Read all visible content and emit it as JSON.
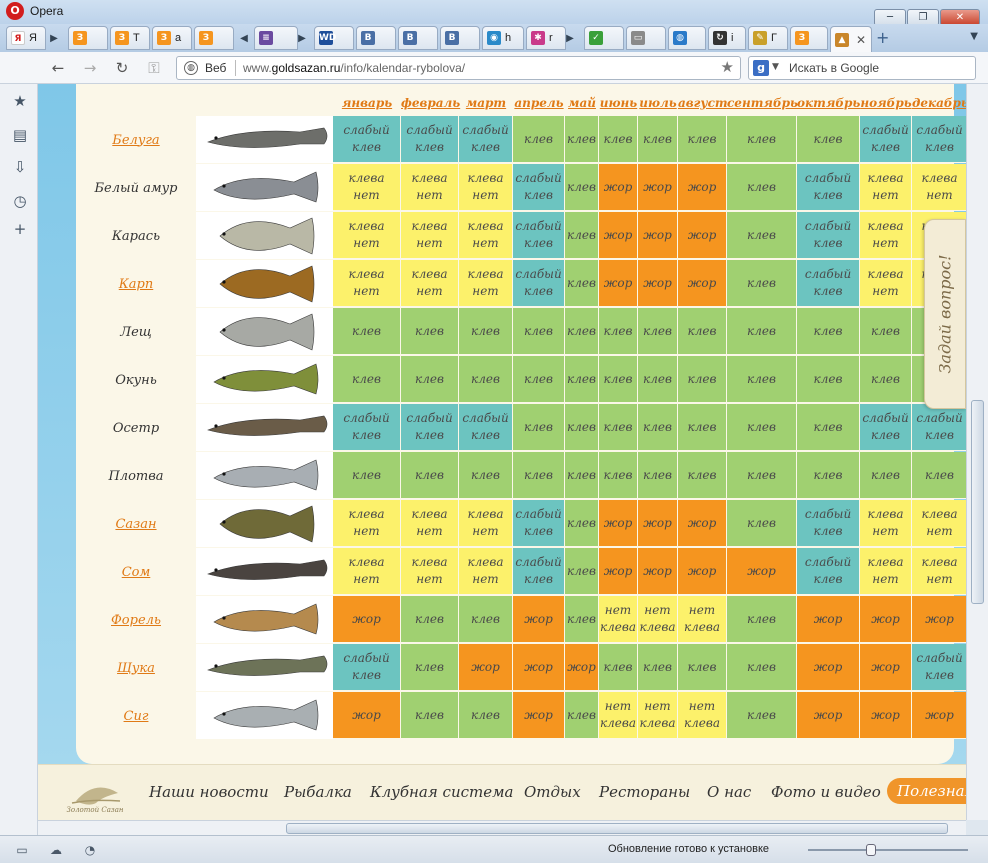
{
  "window": {
    "title": "Opera"
  },
  "tabs": [
    {
      "icon": "yandex-icon",
      "icon_text": "Я",
      "color": "#ffffff",
      "label": "Я"
    },
    {
      "icon": "z-logo-icon",
      "icon_text": "З",
      "color": "#f5951f",
      "label": ""
    },
    {
      "icon": "z-logo-icon",
      "icon_text": "З",
      "color": "#f5951f",
      "label": "Т"
    },
    {
      "icon": "z-logo-icon",
      "icon_text": "З",
      "color": "#f5951f",
      "label": "а"
    },
    {
      "icon": "z-logo-icon",
      "icon_text": "З",
      "color": "#f5951f",
      "label": ""
    },
    {
      "icon": "books-icon",
      "icon_text": "≡",
      "color": "#6a4aa0",
      "label": ""
    },
    {
      "icon": "wd-icon",
      "icon_text": "WD",
      "color": "#1e4e9a",
      "label": ""
    },
    {
      "icon": "vk-icon",
      "icon_text": "B",
      "color": "#4a6fa5",
      "label": ""
    },
    {
      "icon": "vk-icon",
      "icon_text": "B",
      "color": "#4a6fa5",
      "label": ""
    },
    {
      "icon": "vk-icon",
      "icon_text": "B",
      "color": "#4a6fa5",
      "label": ""
    },
    {
      "icon": "radio-icon",
      "icon_text": "◉",
      "color": "#2a8ac9",
      "label": "h"
    },
    {
      "icon": "color-icon",
      "icon_text": "✱",
      "color": "#c93a8a",
      "label": "r"
    },
    {
      "icon": "check-icon",
      "icon_text": "✓",
      "color": "#3aa03a",
      "label": ""
    },
    {
      "icon": "page-icon",
      "icon_text": "▭",
      "color": "#8a8a8a",
      "label": ""
    },
    {
      "icon": "globe-icon",
      "icon_text": "◍",
      "color": "#2a7ac9",
      "label": ""
    },
    {
      "icon": "arrow-icon",
      "icon_text": "↻",
      "color": "#333333",
      "label": "i"
    },
    {
      "icon": "key-icon",
      "icon_text": "✎",
      "color": "#c9a02a",
      "label": "Г"
    },
    {
      "icon": "z-logo-icon",
      "icon_text": "З",
      "color": "#f5951f",
      "label": ""
    },
    {
      "icon": "fish-site-icon",
      "icon_text": "▲",
      "color": "#c9862a",
      "label": ""
    }
  ],
  "addressbar": {
    "web_label": "Веб",
    "url_prefix": "www.",
    "url_domain": "goldsazan.ru",
    "url_path": "/info/kalendar-rybolova/",
    "search_placeholder": "Искать в Google"
  },
  "calendar": {
    "months": [
      "январь",
      "февраль",
      "март",
      "апрель",
      "май",
      "июнь",
      "июль",
      "август",
      "сентябрь",
      "октябрь",
      "ноябрь",
      "декабрь"
    ],
    "fish": [
      {
        "name": "Белуга",
        "link": true,
        "image": "beluga-fish-image",
        "cells": [
          "b",
          "b",
          "b",
          "g",
          "g",
          "g",
          "g",
          "g",
          "g",
          "g",
          "b",
          "b"
        ]
      },
      {
        "name": "Белый амур",
        "link": false,
        "image": "grass-carp-fish-image",
        "cells": [
          "y",
          "y",
          "y",
          "b",
          "g",
          "o",
          "o",
          "o",
          "g",
          "b",
          "y",
          "y"
        ]
      },
      {
        "name": "Карась",
        "link": false,
        "image": "crucian-fish-image",
        "cells": [
          "y",
          "y",
          "y",
          "b",
          "g",
          "o",
          "o",
          "o",
          "g",
          "b",
          "y",
          "y"
        ]
      },
      {
        "name": "Карп",
        "link": true,
        "image": "carp-fish-image",
        "cells": [
          "y",
          "y",
          "y",
          "b",
          "g",
          "o",
          "o",
          "o",
          "g",
          "b",
          "y",
          "y"
        ]
      },
      {
        "name": "Лещ",
        "link": false,
        "image": "bream-fish-image",
        "cells": [
          "g",
          "g",
          "g",
          "g",
          "g",
          "g",
          "g",
          "g",
          "g",
          "g",
          "g",
          "g"
        ]
      },
      {
        "name": "Окунь",
        "link": false,
        "image": "perch-fish-image",
        "cells": [
          "g",
          "g",
          "g",
          "g",
          "g",
          "g",
          "g",
          "g",
          "g",
          "g",
          "g",
          "g"
        ]
      },
      {
        "name": "Осетр",
        "link": false,
        "image": "sturgeon-fish-image",
        "cells": [
          "b",
          "b",
          "b",
          "g",
          "g",
          "g",
          "g",
          "g",
          "g",
          "g",
          "b",
          "b"
        ]
      },
      {
        "name": "Плотва",
        "link": false,
        "image": "roach-fish-image",
        "cells": [
          "g",
          "g",
          "g",
          "g",
          "g",
          "g",
          "g",
          "g",
          "g",
          "g",
          "g",
          "g"
        ]
      },
      {
        "name": "Сазан",
        "link": true,
        "image": "sazan-fish-image",
        "cells": [
          "y",
          "y",
          "y",
          "b",
          "g",
          "o",
          "o",
          "o",
          "g",
          "b",
          "y",
          "y"
        ]
      },
      {
        "name": "Сом",
        "link": true,
        "image": "catfish-fish-image",
        "cells": [
          "y",
          "y",
          "y",
          "b",
          "g",
          "o",
          "o",
          "o",
          "o",
          "b",
          "y",
          "y"
        ]
      },
      {
        "name": "Форель",
        "link": true,
        "image": "trout-fish-image",
        "cells": [
          "o",
          "g",
          "g",
          "o",
          "g",
          "y",
          "y",
          "y",
          "g",
          "o",
          "o",
          "o"
        ]
      },
      {
        "name": "Щука",
        "link": true,
        "image": "pike-fish-image",
        "cells": [
          "b",
          "g",
          "o",
          "o",
          "o",
          "g",
          "g",
          "g",
          "g",
          "o",
          "o",
          "b"
        ]
      },
      {
        "name": "Сиг",
        "link": true,
        "image": "whitefish-fish-image",
        "cells": [
          "o",
          "g",
          "g",
          "o",
          "g",
          "y",
          "y",
          "y",
          "g",
          "o",
          "o",
          "o"
        ]
      }
    ],
    "legend": {
      "g": "клев",
      "b": "слабый клев",
      "y_long": "клева нет",
      "y_short": "нет клева",
      "o": "жор"
    },
    "colors": {
      "g": "#a0d071",
      "b": "#6cc4c0",
      "y": "#fcf16b",
      "o": "#f5951f"
    }
  },
  "side_tab": {
    "label": "Задай вопрос!"
  },
  "footer_menu": [
    "Наши новости",
    "Рыбалка",
    "Клубная система",
    "Отдых",
    "Рестораны",
    "О нас",
    "Фото и видео",
    "Полезная"
  ],
  "footer_logo_text": "Золотой Сазан",
  "status": {
    "text": "Обновление готово к установке"
  }
}
